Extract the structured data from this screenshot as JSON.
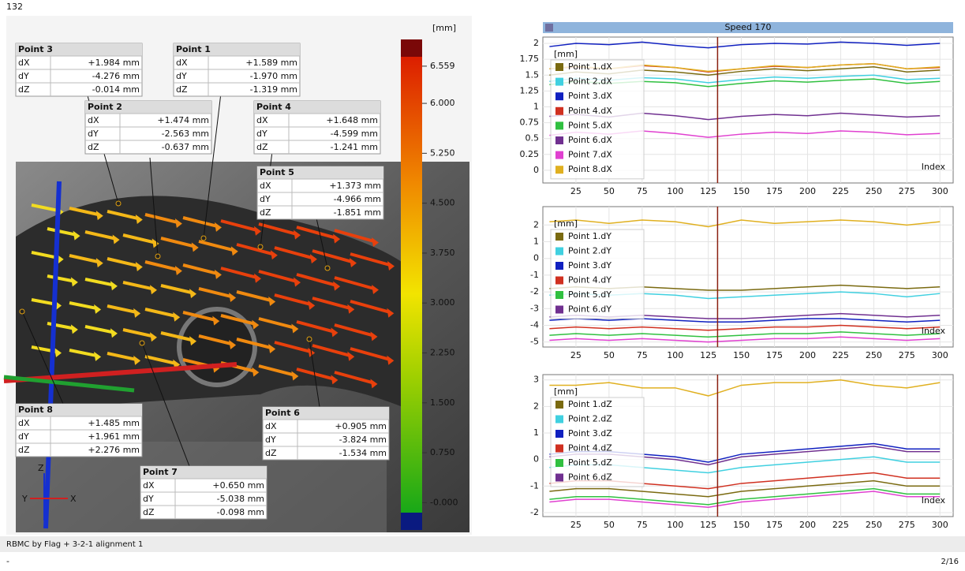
{
  "frame_label": "132",
  "points": [
    {
      "title": "Point 3",
      "rows": [
        [
          "dX",
          "+1.984 mm"
        ],
        [
          "dY",
          "-4.276 mm"
        ],
        [
          "dZ",
          "-0.014 mm"
        ]
      ]
    },
    {
      "title": "Point 1",
      "rows": [
        [
          "dX",
          "+1.589 mm"
        ],
        [
          "dY",
          "-1.970 mm"
        ],
        [
          "dZ",
          "-1.319 mm"
        ]
      ]
    },
    {
      "title": "Point 2",
      "rows": [
        [
          "dX",
          "+1.474 mm"
        ],
        [
          "dY",
          "-2.563 mm"
        ],
        [
          "dZ",
          "-0.637 mm"
        ]
      ]
    },
    {
      "title": "Point 4",
      "rows": [
        [
          "dX",
          "+1.648 mm"
        ],
        [
          "dY",
          "-4.599 mm"
        ],
        [
          "dZ",
          "-1.241 mm"
        ]
      ]
    },
    {
      "title": "Point 5",
      "rows": [
        [
          "dX",
          "+1.373 mm"
        ],
        [
          "dY",
          "-4.966 mm"
        ],
        [
          "dZ",
          "-1.851 mm"
        ]
      ]
    },
    {
      "title": "Point 8",
      "rows": [
        [
          "dX",
          "+1.485 mm"
        ],
        [
          "dY",
          "+1.961 mm"
        ],
        [
          "dZ",
          "+2.276 mm"
        ]
      ]
    },
    {
      "title": "Point 6",
      "rows": [
        [
          "dX",
          "+0.905 mm"
        ],
        [
          "dY",
          "-3.824 mm"
        ],
        [
          "dZ",
          "-1.534 mm"
        ]
      ]
    },
    {
      "title": "Point 7",
      "rows": [
        [
          "dX",
          "+0.650 mm"
        ],
        [
          "dY",
          "-5.038 mm"
        ],
        [
          "dZ",
          "-0.098 mm"
        ]
      ]
    }
  ],
  "colorbar": {
    "unit": "[mm]",
    "lim": [
      -0.15,
      6.7
    ],
    "ticks": [
      6.559,
      {
        "value": 6,
        "label": "6.000"
      },
      {
        "value": 5.25,
        "label": "5.250"
      },
      {
        "value": 4.5,
        "label": "4.500"
      },
      {
        "value": 3.75,
        "label": "3.750"
      },
      {
        "value": 3,
        "label": "3.000"
      },
      {
        "value": 2.25,
        "label": "2.250"
      },
      {
        "value": 1.5,
        "label": "1.500"
      },
      {
        "value": 0.75,
        "label": "0.750"
      },
      {
        "value": 0,
        "label": "-0.000"
      }
    ]
  },
  "triad": {
    "z": "Z",
    "y": "Y",
    "x": "X"
  },
  "header": "Speed 170",
  "chart_data": [
    {
      "type": "line",
      "y_unit": "[mm]",
      "x_label": "Index",
      "cursor_x": 132,
      "x": [
        5,
        25,
        50,
        75,
        100,
        125,
        150,
        175,
        200,
        225,
        250,
        275,
        300
      ],
      "xlim": [
        0,
        310
      ],
      "xticks": [
        25,
        50,
        75,
        100,
        125,
        150,
        175,
        200,
        225,
        250,
        275,
        300
      ],
      "ylim": [
        -0.2,
        2.1
      ],
      "yticks": [
        0,
        0.25,
        0.5,
        0.75,
        1,
        1.25,
        1.5,
        1.75,
        2
      ],
      "grid": true,
      "series": [
        {
          "name": "Point 1.dX",
          "color": "#7a6a10",
          "values": [
            1.5,
            1.55,
            1.52,
            1.58,
            1.55,
            1.5,
            1.56,
            1.6,
            1.57,
            1.6,
            1.63,
            1.55,
            1.58
          ]
        },
        {
          "name": "Point 2.dX",
          "color": "#40d0e0",
          "values": [
            1.4,
            1.45,
            1.42,
            1.46,
            1.44,
            1.38,
            1.43,
            1.47,
            1.45,
            1.48,
            1.5,
            1.43,
            1.45
          ]
        },
        {
          "name": "Point 3.dX",
          "color": "#1020c0",
          "values": [
            1.95,
            2.0,
            1.98,
            2.02,
            1.97,
            1.93,
            1.98,
            2.0,
            1.99,
            2.02,
            2.0,
            1.97,
            2.0
          ]
        },
        {
          "name": "Point 4.dX",
          "color": "#d03020",
          "values": [
            1.6,
            1.63,
            1.6,
            1.65,
            1.62,
            1.55,
            1.6,
            1.64,
            1.62,
            1.66,
            1.68,
            1.6,
            1.62
          ]
        },
        {
          "name": "Point 5.dX",
          "color": "#30c040",
          "values": [
            1.35,
            1.4,
            1.37,
            1.4,
            1.38,
            1.32,
            1.37,
            1.41,
            1.39,
            1.42,
            1.44,
            1.37,
            1.4
          ]
        },
        {
          "name": "Point 6.dX",
          "color": "#703090",
          "values": [
            0.85,
            0.88,
            0.84,
            0.9,
            0.86,
            0.8,
            0.85,
            0.88,
            0.86,
            0.9,
            0.87,
            0.84,
            0.86
          ]
        },
        {
          "name": "Point 7.dX",
          "color": "#e040d0",
          "values": [
            0.55,
            0.6,
            0.57,
            0.62,
            0.58,
            0.52,
            0.57,
            0.6,
            0.58,
            0.62,
            0.6,
            0.56,
            0.58
          ]
        },
        {
          "name": "Point 8.dX",
          "color": "#e0b020",
          "values": [
            1.6,
            1.64,
            1.6,
            1.66,
            1.62,
            1.56,
            1.6,
            1.65,
            1.62,
            1.66,
            1.68,
            1.6,
            1.63
          ]
        }
      ]
    },
    {
      "type": "line",
      "y_unit": "[mm]",
      "x_label": "Index",
      "cursor_x": 132,
      "x": [
        5,
        25,
        50,
        75,
        100,
        125,
        150,
        175,
        200,
        225,
        250,
        275,
        300
      ],
      "xlim": [
        0,
        310
      ],
      "xticks": [
        25,
        50,
        75,
        100,
        125,
        150,
        175,
        200,
        225,
        250,
        275,
        300
      ],
      "ylim": [
        -5.3,
        3.1
      ],
      "yticks": [
        -5,
        -4,
        -3,
        -2,
        -1,
        0,
        1,
        2
      ],
      "grid": true,
      "series": [
        {
          "name": "Point 1.dY",
          "color": "#7a6a10",
          "values": [
            -1.8,
            -1.7,
            -1.8,
            -1.7,
            -1.8,
            -1.9,
            -1.9,
            -1.8,
            -1.7,
            -1.6,
            -1.7,
            -1.8,
            -1.7
          ]
        },
        {
          "name": "Point 2.dY",
          "color": "#40d0e0",
          "values": [
            -2.2,
            -2.1,
            -2.2,
            -2.1,
            -2.2,
            -2.4,
            -2.3,
            -2.2,
            -2.1,
            -2.0,
            -2.1,
            -2.3,
            -2.1
          ]
        },
        {
          "name": "Point 3.dY",
          "color": "#1020c0",
          "values": [
            -3.7,
            -3.6,
            -3.7,
            -3.6,
            -3.7,
            -3.8,
            -3.8,
            -3.7,
            -3.6,
            -3.6,
            -3.7,
            -3.8,
            -3.7
          ]
        },
        {
          "name": "Point 4.dY",
          "color": "#d03020",
          "values": [
            -4.2,
            -4.1,
            -4.2,
            -4.1,
            -4.2,
            -4.3,
            -4.2,
            -4.1,
            -4.1,
            -4.0,
            -4.1,
            -4.2,
            -4.1
          ]
        },
        {
          "name": "Point 5.dY",
          "color": "#30c040",
          "values": [
            -4.6,
            -4.5,
            -4.6,
            -4.5,
            -4.6,
            -4.7,
            -4.6,
            -4.5,
            -4.5,
            -4.4,
            -4.5,
            -4.6,
            -4.5
          ]
        },
        {
          "name": "Point 6.dY",
          "color": "#703090",
          "values": [
            -3.5,
            -3.4,
            -3.5,
            -3.4,
            -3.5,
            -3.6,
            -3.6,
            -3.5,
            -3.4,
            -3.3,
            -3.4,
            -3.5,
            -3.4
          ]
        },
        {
          "color": "#e040d0",
          "values": [
            -4.9,
            -4.8,
            -4.9,
            -4.8,
            -4.9,
            -5.0,
            -4.9,
            -4.8,
            -4.8,
            -4.7,
            -4.8,
            -4.9,
            -4.8
          ]
        },
        {
          "color": "#e0b020",
          "values": [
            2.2,
            2.3,
            2.1,
            2.3,
            2.2,
            1.9,
            2.3,
            2.1,
            2.2,
            2.3,
            2.2,
            2.0,
            2.2
          ]
        }
      ]
    },
    {
      "type": "line",
      "y_unit": "[mm]",
      "x_label": "Index",
      "cursor_x": 132,
      "x": [
        5,
        25,
        50,
        75,
        100,
        125,
        150,
        175,
        200,
        225,
        250,
        275,
        300
      ],
      "xlim": [
        0,
        310
      ],
      "xticks": [
        25,
        50,
        75,
        100,
        125,
        150,
        175,
        200,
        225,
        250,
        275,
        300
      ],
      "ylim": [
        -2.15,
        3.2
      ],
      "yticks": [
        -2,
        -1,
        0,
        1,
        2,
        3
      ],
      "grid": true,
      "series": [
        {
          "name": "Point 1.dZ",
          "color": "#7a6a10",
          "values": [
            -1.2,
            -1.1,
            -1.1,
            -1.2,
            -1.3,
            -1.4,
            -1.2,
            -1.1,
            -1.0,
            -0.9,
            -0.8,
            -1.0,
            -1.0
          ]
        },
        {
          "name": "Point 2.dZ",
          "color": "#40d0e0",
          "values": [
            -0.3,
            -0.2,
            -0.2,
            -0.3,
            -0.4,
            -0.5,
            -0.3,
            -0.2,
            -0.1,
            0.0,
            0.1,
            -0.1,
            -0.1
          ]
        },
        {
          "name": "Point 3.dZ",
          "color": "#1020c0",
          "values": [
            0.2,
            0.3,
            0.3,
            0.2,
            0.1,
            -0.1,
            0.2,
            0.3,
            0.4,
            0.5,
            0.6,
            0.4,
            0.4
          ]
        },
        {
          "name": "Point 4.dZ",
          "color": "#d03020",
          "values": [
            -0.9,
            -0.8,
            -0.8,
            -0.9,
            -1.0,
            -1.1,
            -0.9,
            -0.8,
            -0.7,
            -0.6,
            -0.5,
            -0.7,
            -0.7
          ]
        },
        {
          "name": "Point 5.dZ",
          "color": "#30c040",
          "values": [
            -1.5,
            -1.4,
            -1.4,
            -1.5,
            -1.6,
            -1.7,
            -1.5,
            -1.4,
            -1.3,
            -1.2,
            -1.1,
            -1.3,
            -1.3
          ]
        },
        {
          "name": "Point 6.dZ",
          "color": "#703090",
          "values": [
            0.1,
            0.2,
            0.2,
            0.1,
            0.0,
            -0.2,
            0.1,
            0.2,
            0.3,
            0.4,
            0.5,
            0.3,
            0.3
          ]
        },
        {
          "color": "#e040d0",
          "values": [
            -1.6,
            -1.5,
            -1.5,
            -1.6,
            -1.7,
            -1.8,
            -1.6,
            -1.5,
            -1.4,
            -1.3,
            -1.2,
            -1.4,
            -1.4
          ]
        },
        {
          "color": "#e0b020",
          "values": [
            2.8,
            2.8,
            2.9,
            2.7,
            2.7,
            2.4,
            2.8,
            2.9,
            2.9,
            3.0,
            2.8,
            2.7,
            2.9
          ]
        }
      ]
    }
  ],
  "footer": {
    "status": "RBMC by Flag + 3-2-1 alignment 1",
    "left": "-",
    "page": "2/16"
  }
}
